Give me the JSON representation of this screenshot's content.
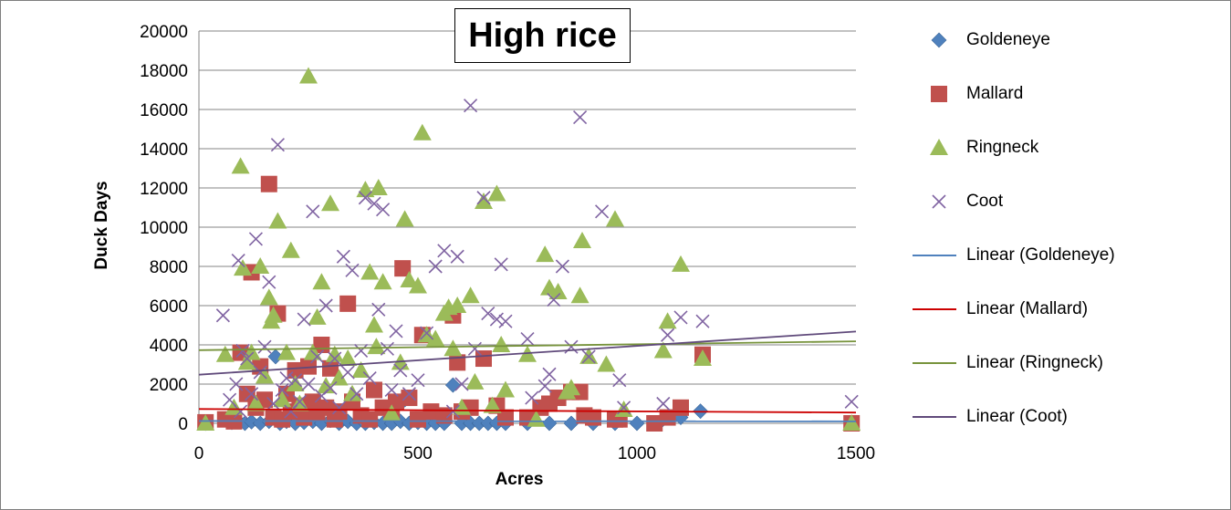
{
  "chart_data": {
    "type": "scatter",
    "title": "High rice",
    "xlabel": "Acres",
    "ylabel": "Duck Days",
    "xlim": [
      0,
      1500
    ],
    "ylim": [
      0,
      20000
    ],
    "x_ticks": [
      "0",
      "500",
      "1000",
      "1500"
    ],
    "y_ticks": [
      "0",
      "2000",
      "4000",
      "6000",
      "8000",
      "10000",
      "12000",
      "14000",
      "16000",
      "18000",
      "20000"
    ],
    "grid": "horizontal",
    "legend_position": "right",
    "series": [
      {
        "name": "Goldeneye",
        "marker": "diamond",
        "color": "#4f81bd",
        "points": [
          [
            15,
            0
          ],
          [
            75,
            50
          ],
          [
            90,
            100
          ],
          [
            105,
            0
          ],
          [
            120,
            80
          ],
          [
            140,
            0
          ],
          [
            160,
            100
          ],
          [
            175,
            3400
          ],
          [
            185,
            0
          ],
          [
            200,
            100
          ],
          [
            220,
            0
          ],
          [
            240,
            50
          ],
          [
            260,
            100
          ],
          [
            280,
            0
          ],
          [
            300,
            150
          ],
          [
            320,
            0
          ],
          [
            340,
            100
          ],
          [
            360,
            0
          ],
          [
            380,
            0
          ],
          [
            400,
            50
          ],
          [
            420,
            0
          ],
          [
            440,
            0
          ],
          [
            460,
            100
          ],
          [
            470,
            1200
          ],
          [
            480,
            0
          ],
          [
            500,
            50
          ],
          [
            520,
            0
          ],
          [
            540,
            0
          ],
          [
            560,
            0
          ],
          [
            580,
            1950
          ],
          [
            600,
            0
          ],
          [
            620,
            0
          ],
          [
            640,
            0
          ],
          [
            660,
            0
          ],
          [
            680,
            0
          ],
          [
            700,
            0
          ],
          [
            750,
            0
          ],
          [
            800,
            0
          ],
          [
            850,
            0
          ],
          [
            900,
            0
          ],
          [
            950,
            0
          ],
          [
            1000,
            0
          ],
          [
            1050,
            0
          ],
          [
            1100,
            300
          ],
          [
            1145,
            620
          ],
          [
            1490,
            0
          ]
        ],
        "trendline": {
          "name": "Linear (Goldeneye)",
          "color": "#4f81bd",
          "x": [
            0,
            1500
          ],
          "y": [
            120,
            100
          ]
        }
      },
      {
        "name": "Mallard",
        "marker": "square",
        "color": "#c0504d",
        "points": [
          [
            15,
            50
          ],
          [
            60,
            200
          ],
          [
            80,
            100
          ],
          [
            95,
            3600
          ],
          [
            110,
            1500
          ],
          [
            120,
            7700
          ],
          [
            130,
            800
          ],
          [
            140,
            2900
          ],
          [
            150,
            1200
          ],
          [
            160,
            12200
          ],
          [
            170,
            300
          ],
          [
            180,
            5600
          ],
          [
            190,
            200
          ],
          [
            200,
            1500
          ],
          [
            210,
            600
          ],
          [
            220,
            2700
          ],
          [
            230,
            900
          ],
          [
            240,
            300
          ],
          [
            250,
            2900
          ],
          [
            260,
            1100
          ],
          [
            270,
            500
          ],
          [
            280,
            4000
          ],
          [
            290,
            800
          ],
          [
            300,
            2800
          ],
          [
            310,
            200
          ],
          [
            320,
            600
          ],
          [
            340,
            6100
          ],
          [
            350,
            1100
          ],
          [
            370,
            400
          ],
          [
            390,
            200
          ],
          [
            400,
            1700
          ],
          [
            420,
            800
          ],
          [
            440,
            500
          ],
          [
            450,
            1100
          ],
          [
            465,
            7900
          ],
          [
            480,
            1300
          ],
          [
            500,
            200
          ],
          [
            510,
            4500
          ],
          [
            530,
            600
          ],
          [
            560,
            400
          ],
          [
            580,
            5500
          ],
          [
            590,
            3100
          ],
          [
            600,
            600
          ],
          [
            620,
            800
          ],
          [
            650,
            3300
          ],
          [
            680,
            900
          ],
          [
            700,
            300
          ],
          [
            750,
            300
          ],
          [
            780,
            800
          ],
          [
            800,
            1000
          ],
          [
            820,
            1300
          ],
          [
            850,
            1600
          ],
          [
            870,
            1600
          ],
          [
            880,
            400
          ],
          [
            900,
            300
          ],
          [
            950,
            200
          ],
          [
            960,
            200
          ],
          [
            1040,
            0
          ],
          [
            1070,
            300
          ],
          [
            1100,
            800
          ],
          [
            1150,
            3500
          ],
          [
            1490,
            0
          ]
        ],
        "trendline": {
          "name": "Linear (Mallard)",
          "color": "#cc0000",
          "x": [
            0,
            1500
          ],
          "y": [
            730,
            550
          ]
        }
      },
      {
        "name": "Ringneck",
        "marker": "triangle",
        "color": "#9bbb59",
        "points": [
          [
            15,
            0
          ],
          [
            60,
            3500
          ],
          [
            80,
            800
          ],
          [
            95,
            13100
          ],
          [
            100,
            7900
          ],
          [
            110,
            3100
          ],
          [
            120,
            3600
          ],
          [
            130,
            1000
          ],
          [
            140,
            8000
          ],
          [
            150,
            2400
          ],
          [
            160,
            6400
          ],
          [
            165,
            5200
          ],
          [
            170,
            5500
          ],
          [
            180,
            10300
          ],
          [
            190,
            1200
          ],
          [
            200,
            3600
          ],
          [
            210,
            8800
          ],
          [
            220,
            2000
          ],
          [
            230,
            1000
          ],
          [
            250,
            17700
          ],
          [
            260,
            3600
          ],
          [
            270,
            5400
          ],
          [
            280,
            7200
          ],
          [
            290,
            1900
          ],
          [
            300,
            11200
          ],
          [
            310,
            3500
          ],
          [
            320,
            2300
          ],
          [
            340,
            3300
          ],
          [
            350,
            1500
          ],
          [
            370,
            2700
          ],
          [
            380,
            11900
          ],
          [
            390,
            7700
          ],
          [
            400,
            5000
          ],
          [
            405,
            3900
          ],
          [
            410,
            12000
          ],
          [
            420,
            7200
          ],
          [
            440,
            500
          ],
          [
            460,
            3100
          ],
          [
            470,
            10400
          ],
          [
            480,
            7300
          ],
          [
            500,
            7000
          ],
          [
            510,
            14800
          ],
          [
            520,
            4500
          ],
          [
            540,
            4300
          ],
          [
            560,
            5600
          ],
          [
            570,
            5900
          ],
          [
            580,
            3800
          ],
          [
            590,
            6000
          ],
          [
            600,
            800
          ],
          [
            620,
            6500
          ],
          [
            630,
            2100
          ],
          [
            650,
            11300
          ],
          [
            670,
            900
          ],
          [
            680,
            11700
          ],
          [
            690,
            4000
          ],
          [
            700,
            1700
          ],
          [
            750,
            3500
          ],
          [
            770,
            200
          ],
          [
            790,
            8600
          ],
          [
            800,
            6900
          ],
          [
            820,
            6700
          ],
          [
            840,
            1600
          ],
          [
            850,
            1800
          ],
          [
            870,
            6500
          ],
          [
            875,
            9300
          ],
          [
            890,
            3400
          ],
          [
            930,
            3000
          ],
          [
            950,
            10400
          ],
          [
            970,
            700
          ],
          [
            1060,
            3700
          ],
          [
            1070,
            5200
          ],
          [
            1100,
            8100
          ],
          [
            1150,
            3300
          ],
          [
            1490,
            0
          ]
        ],
        "trendline": {
          "name": "Linear (Ringneck)",
          "color": "#77933c",
          "x": [
            0,
            1500
          ],
          "y": [
            3730,
            4180
          ]
        }
      },
      {
        "name": "Coot",
        "marker": "x",
        "color": "#8064a2",
        "points": [
          [
            55,
            5500
          ],
          [
            70,
            1200
          ],
          [
            85,
            2000
          ],
          [
            90,
            8300
          ],
          [
            95,
            600
          ],
          [
            100,
            3700
          ],
          [
            110,
            3300
          ],
          [
            120,
            1500
          ],
          [
            130,
            9400
          ],
          [
            140,
            2600
          ],
          [
            150,
            3900
          ],
          [
            160,
            7200
          ],
          [
            170,
            1000
          ],
          [
            180,
            14200
          ],
          [
            190,
            1700
          ],
          [
            200,
            2300
          ],
          [
            210,
            600
          ],
          [
            220,
            2200
          ],
          [
            230,
            1100
          ],
          [
            240,
            5300
          ],
          [
            250,
            2000
          ],
          [
            260,
            10800
          ],
          [
            270,
            3400
          ],
          [
            280,
            1400
          ],
          [
            290,
            6000
          ],
          [
            300,
            1800
          ],
          [
            310,
            3300
          ],
          [
            320,
            800
          ],
          [
            330,
            8500
          ],
          [
            340,
            2600
          ],
          [
            350,
            7800
          ],
          [
            360,
            1500
          ],
          [
            370,
            3700
          ],
          [
            380,
            11500
          ],
          [
            390,
            2300
          ],
          [
            400,
            11200
          ],
          [
            410,
            5800
          ],
          [
            420,
            10900
          ],
          [
            430,
            3800
          ],
          [
            440,
            1700
          ],
          [
            450,
            4700
          ],
          [
            460,
            2700
          ],
          [
            480,
            1500
          ],
          [
            500,
            2200
          ],
          [
            520,
            4600
          ],
          [
            540,
            8000
          ],
          [
            560,
            8800
          ],
          [
            580,
            600
          ],
          [
            590,
            8500
          ],
          [
            600,
            2000
          ],
          [
            620,
            16200
          ],
          [
            630,
            3800
          ],
          [
            650,
            11500
          ],
          [
            660,
            5600
          ],
          [
            680,
            5300
          ],
          [
            690,
            8100
          ],
          [
            700,
            5200
          ],
          [
            750,
            4300
          ],
          [
            760,
            1300
          ],
          [
            790,
            1900
          ],
          [
            800,
            2500
          ],
          [
            810,
            6300
          ],
          [
            830,
            8000
          ],
          [
            850,
            3900
          ],
          [
            870,
            15600
          ],
          [
            890,
            3400
          ],
          [
            920,
            10800
          ],
          [
            960,
            2200
          ],
          [
            970,
            800
          ],
          [
            1060,
            1000
          ],
          [
            1070,
            4500
          ],
          [
            1100,
            5400
          ],
          [
            1150,
            5200
          ],
          [
            1490,
            1100
          ]
        ],
        "trendline": {
          "name": "Linear (Coot)",
          "color": "#604a7b",
          "x": [
            0,
            1500
          ],
          "y": [
            2480,
            4680
          ]
        }
      }
    ]
  }
}
